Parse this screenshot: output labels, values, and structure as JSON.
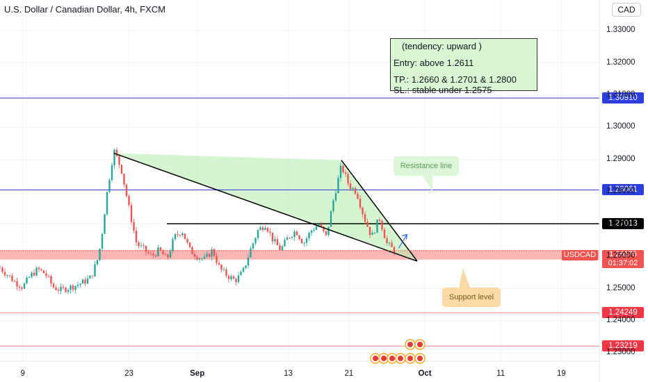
{
  "header": {
    "title": "U.S. Dollar / Canadian Dollar, 4h, FXCM",
    "currency": "CAD"
  },
  "annotation_box": {
    "tendency": "(tendency: upward  )",
    "entry": "Entry: above 1.2611",
    "tp": "TP.: 1.2660 & 1.2701 & 1.2800",
    "sl": "SL.: stable under 1.2575"
  },
  "callouts": {
    "resistance": "Resistance line",
    "support": "Support level"
  },
  "colors": {
    "up": "#26a69a",
    "down": "#ef5350",
    "support_zone": "#f8a9a8",
    "triangle_fill": "#b9eeb0",
    "blue_line": "#3030d8",
    "tag_blue": "#2b3ee0",
    "tag_red": "#f23645",
    "tag_black": "#000000"
  },
  "chart_data": {
    "type": "candlestick",
    "title": "U.S. Dollar / Canadian Dollar, 4h, FXCM",
    "symbol": "USDCAD",
    "ylim": [
      1.2275,
      1.3395
    ],
    "y_ticks": [
      1.23,
      1.24,
      1.25,
      1.26,
      1.27,
      1.28,
      1.29,
      1.3,
      1.31,
      1.32,
      1.33
    ],
    "y_tick_labels": [
      "1.23000",
      "1.24000",
      "1.25000",
      "1.26000",
      "1.27000",
      "1.28000",
      "1.29000",
      "1.30000",
      "1.31000",
      "1.32000",
      "1.33000"
    ],
    "x_range": [
      "2021-08-06",
      "2021-10-24"
    ],
    "x_ticks": [
      {
        "label": "9",
        "date": "2021-08-09"
      },
      {
        "label": "23",
        "date": "2021-08-23"
      },
      {
        "label": "Sep",
        "date": "2021-09-01",
        "bold": true
      },
      {
        "label": "13",
        "date": "2021-09-13"
      },
      {
        "label": "21",
        "date": "2021-09-21"
      },
      {
        "label": "Oct",
        "date": "2021-10-01",
        "bold": true
      },
      {
        "label": "11",
        "date": "2021-10-11"
      },
      {
        "label": "19",
        "date": "2021-10-19"
      }
    ],
    "path": [
      [
        "2021-08-06",
        1.2565
      ],
      [
        "2021-08-08",
        1.252
      ],
      [
        "2021-08-09",
        1.2505
      ],
      [
        "2021-08-10",
        1.254
      ],
      [
        "2021-08-11",
        1.256
      ],
      [
        "2021-08-12",
        1.2545
      ],
      [
        "2021-08-13",
        1.2505
      ],
      [
        "2021-08-14",
        1.2495
      ],
      [
        "2021-08-16",
        1.251
      ],
      [
        "2021-08-17",
        1.252
      ],
      [
        "2021-08-18",
        1.2535
      ],
      [
        "2021-08-19",
        1.26
      ],
      [
        "2021-08-19T12",
        1.268
      ],
      [
        "2021-08-20",
        1.278
      ],
      [
        "2021-08-20T16",
        1.288
      ],
      [
        "2021-08-21",
        1.293
      ],
      [
        "2021-08-22",
        1.287
      ],
      [
        "2021-08-23",
        1.275
      ],
      [
        "2021-08-24",
        1.264
      ],
      [
        "2021-08-25",
        1.262
      ],
      [
        "2021-08-26",
        1.26
      ],
      [
        "2021-08-27",
        1.262
      ],
      [
        "2021-08-28",
        1.259
      ],
      [
        "2021-08-29",
        1.266
      ],
      [
        "2021-08-30",
        1.268
      ],
      [
        "2021-08-31",
        1.262
      ],
      [
        "2021-09-01",
        1.26
      ],
      [
        "2021-09-02",
        1.259
      ],
      [
        "2021-09-03",
        1.262
      ],
      [
        "2021-09-04",
        1.256
      ],
      [
        "2021-09-05",
        1.254
      ],
      [
        "2021-09-06",
        1.2525
      ],
      [
        "2021-09-07",
        1.255
      ],
      [
        "2021-09-08",
        1.262
      ],
      [
        "2021-09-09",
        1.268
      ],
      [
        "2021-09-10",
        1.27
      ],
      [
        "2021-09-11",
        1.265
      ],
      [
        "2021-09-12",
        1.262
      ],
      [
        "2021-09-13",
        1.266
      ],
      [
        "2021-09-14",
        1.268
      ],
      [
        "2021-09-15",
        1.264
      ],
      [
        "2021-09-16",
        1.268
      ],
      [
        "2021-09-17",
        1.27
      ],
      [
        "2021-09-18",
        1.266
      ],
      [
        "2021-09-19",
        1.278
      ],
      [
        "2021-09-20",
        1.288
      ],
      [
        "2021-09-21",
        1.282
      ],
      [
        "2021-09-22",
        1.28
      ],
      [
        "2021-09-23",
        1.272
      ],
      [
        "2021-09-24",
        1.266
      ],
      [
        "2021-09-25",
        1.272
      ],
      [
        "2021-09-26",
        1.264
      ],
      [
        "2021-09-27",
        1.2617
      ]
    ],
    "horizontal_lines": [
      {
        "price": 1.3091,
        "label": "1.30910",
        "style": "blue",
        "x_from": "2021-08-06"
      },
      {
        "price": 1.28061,
        "label": "1.28061",
        "style": "blue",
        "x_from": "2021-08-06"
      },
      {
        "price": 1.27013,
        "label": "1.27013",
        "style": "black",
        "x_from": "2021-08-28"
      },
      {
        "price": 1.24249,
        "label": "1.24249",
        "style": "red",
        "x_from": "2021-08-06"
      },
      {
        "price": 1.23219,
        "label": "1.23219",
        "style": "red",
        "x_from": "2021-08-06"
      }
    ],
    "support_zone": {
      "low": 1.259,
      "high": 1.262
    },
    "trendlines": [
      {
        "from": [
          "2021-08-21",
          1.292
        ],
        "to": [
          "2021-09-30",
          1.2585
        ]
      },
      {
        "from": [
          "2021-09-20",
          1.2898
        ],
        "to": [
          "2021-09-30",
          1.2585
        ]
      }
    ],
    "current": {
      "symbol": "USDCAD",
      "price": "1.26175",
      "countdown": "01:37:02"
    }
  }
}
